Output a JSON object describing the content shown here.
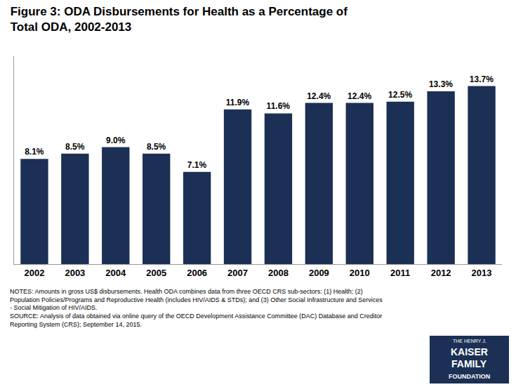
{
  "chart_data": {
    "type": "bar",
    "title": "Figure 3: ODA Disbursements for Health as a Percentage of\nTotal ODA, 2002-2013",
    "categories": [
      "2002",
      "2003",
      "2004",
      "2005",
      "2006",
      "2007",
      "2008",
      "2009",
      "2010",
      "2011",
      "2012",
      "2013"
    ],
    "values": [
      8.1,
      8.5,
      9.0,
      8.5,
      7.1,
      11.9,
      11.6,
      12.4,
      12.4,
      12.5,
      13.3,
      13.7
    ],
    "value_labels": [
      "8.1%",
      "8.5%",
      "9.0%",
      "8.5%",
      "7.1%",
      "11.9%",
      "11.6%",
      "12.4%",
      "12.4%",
      "12.5%",
      "13.3%",
      "13.7%"
    ],
    "color": "#1b3054",
    "ylim": [
      0,
      16
    ],
    "data_labels": true,
    "tick_labels": "x",
    "grid": false,
    "notes": "NOTES: Amounts in gross US$ disbursements. Health ODA combines data from three OECD CRS sub-sectors: (1) Health; (2)\nPopulation Policies/Programs and Reproductive Health (includes HIV/AIDS & STDs); and (3) Other Social Infrastructure and Services\n- Social Mitigation of HIV/AIDS.\nSOURCE: Analysis of data obtained via online query of the OECD Development Assistance Committee (DAC) Database and Creditor\nReporting System (CRS); September 14, 2015.",
    "logo": [
      "THE HENRY J.",
      "KAISER",
      "FAMILY",
      "FOUNDATION"
    ]
  }
}
